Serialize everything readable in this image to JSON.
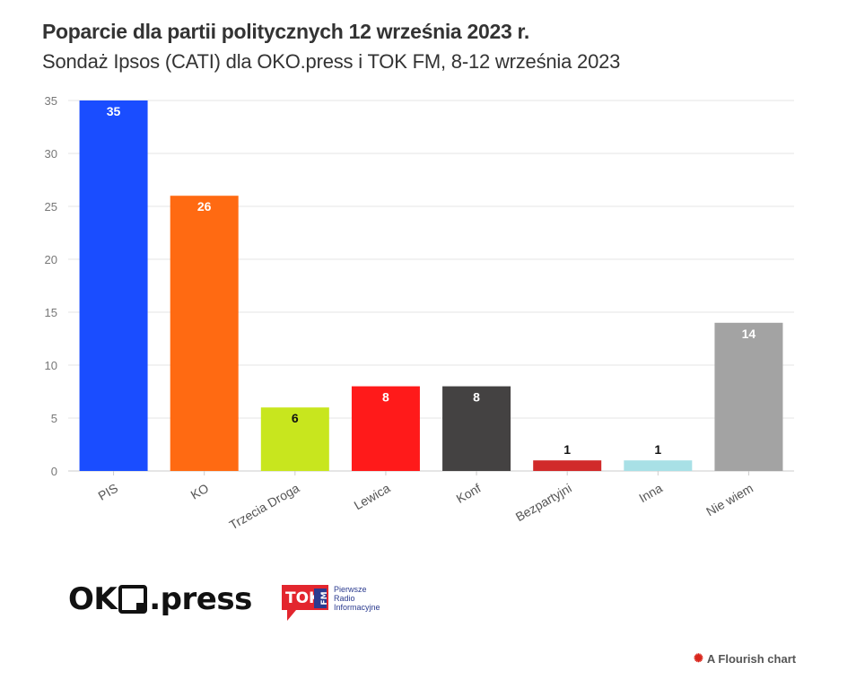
{
  "header": {
    "title": "Poparcie dla partii politycznych 12 września 2023 r.",
    "subtitle": "Sondaż Ipsos (CATI) dla OKO.press i TOK FM, 8-12 września 2023"
  },
  "chart_data": {
    "type": "bar",
    "title": "Poparcie dla partii politycznych 12 września 2023 r.",
    "subtitle": "Sondaż Ipsos (CATI) dla OKO.press i TOK FM, 8-12 września 2023",
    "xlabel": "",
    "ylabel": "",
    "ylim": [
      0,
      35
    ],
    "yticks": [
      0,
      5,
      10,
      15,
      20,
      25,
      30,
      35
    ],
    "grid": true,
    "categories": [
      "PIS",
      "KO",
      "Trzecia Droga",
      "Lewica",
      "Konf",
      "Bezpartyjni",
      "Inna",
      "Nie wiem"
    ],
    "values": [
      35,
      26,
      6,
      8,
      8,
      1,
      1,
      14
    ],
    "colors": [
      "#1a4dff",
      "#ff6a12",
      "#c8e61e",
      "#ff1a1a",
      "#444242",
      "#d12a2a",
      "#a8e0e6",
      "#a3a3a3"
    ],
    "label_colors": [
      "#ffffff",
      "#ffffff",
      "#111111",
      "#ffffff",
      "#ffffff",
      "#111111",
      "#111111",
      "#ffffff"
    ]
  },
  "logos": {
    "oko_left": "OK",
    "oko_right": ".press",
    "tok_label": "TOK",
    "tok_fm": "FM",
    "tok_line1": "Pierwsze",
    "tok_line2": "Radio",
    "tok_line3": "Informacyjne"
  },
  "footer": {
    "flourish_label": "A Flourish chart"
  }
}
